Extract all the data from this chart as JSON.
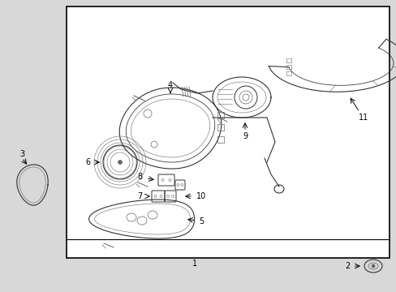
{
  "fig_bg": "#d8d8d8",
  "box_bg": "#e8e8e8",
  "border_color": "#000000",
  "line_color": "#333333",
  "gray": "#666666",
  "figsize": [
    4.89,
    3.6
  ],
  "dpi": 100
}
